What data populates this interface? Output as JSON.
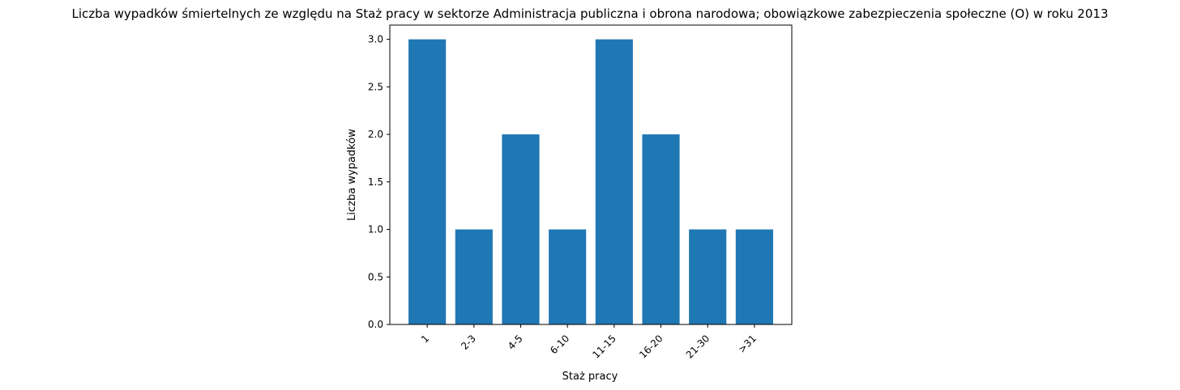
{
  "chart_data": {
    "type": "bar",
    "title": "Liczba wypadków śmiertelnych ze względu na Staż pracy w sektorze Administracja publiczna i obrona narodowa; obowiązkowe zabezpieczenia społeczne  (O)  w roku 2013",
    "xlabel": "Staż pracy",
    "ylabel": "Liczba wypadków",
    "categories": [
      "1",
      "2-3",
      "4-5",
      "6-10",
      "11-15",
      "16-20",
      "21-30",
      ">31"
    ],
    "values": [
      3,
      1,
      2,
      1,
      3,
      2,
      1,
      1
    ],
    "ylim": [
      0,
      3.15
    ],
    "yticks": [
      "0.0",
      "0.5",
      "1.0",
      "1.5",
      "2.0",
      "2.5",
      "3.0"
    ],
    "grid": false,
    "bar_color": "#1f77b4"
  }
}
